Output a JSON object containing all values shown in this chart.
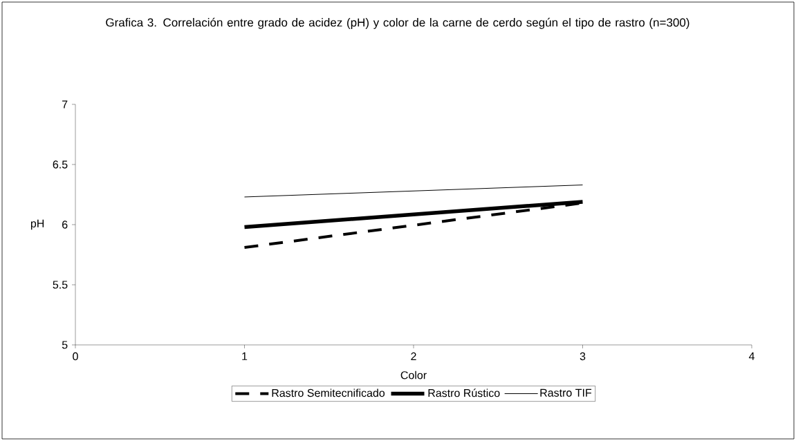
{
  "chart_data": {
    "type": "line",
    "title": "Grafica 3. Correlación entre grado de acidez (pH)  y color de la carne de cerdo según el tipo de rastro (n=300)",
    "xlabel": "Color",
    "ylabel": "pH",
    "xlim": [
      0,
      4
    ],
    "ylim": [
      5,
      7
    ],
    "xticks": [
      0,
      1,
      2,
      3,
      4
    ],
    "yticks": [
      5,
      5.5,
      6,
      6.5,
      7
    ],
    "grid": false,
    "legend": "bottom",
    "marker": "none",
    "x": [
      1,
      3
    ],
    "series": [
      {
        "name": "Rastro Semitecnificado",
        "color": "#000000",
        "line_style": "dashed",
        "values": [
          5.81,
          6.18
        ]
      },
      {
        "name": "Rastro Rústico",
        "color": "#000000",
        "line_style": "solid",
        "values": [
          5.98,
          6.19
        ]
      },
      {
        "name": "Rastro TIF",
        "color": "#000000",
        "line_style": "solid",
        "values": [
          6.23,
          6.33
        ]
      }
    ]
  }
}
